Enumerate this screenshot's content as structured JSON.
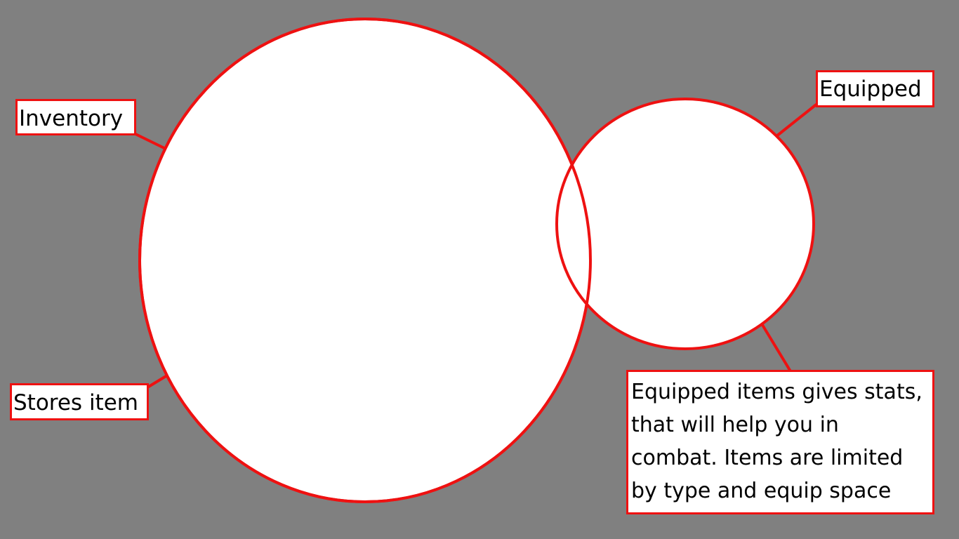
{
  "colors": {
    "background": "#808080",
    "outline": "#ee1111",
    "fill": "#ffffff"
  },
  "labels": {
    "inventory": "Inventory",
    "stores_item": "Stores item",
    "equipped": "Equipped",
    "equipped_description": "Equipped items gives stats, that will help you in combat. Items are limited by type and equip space"
  }
}
